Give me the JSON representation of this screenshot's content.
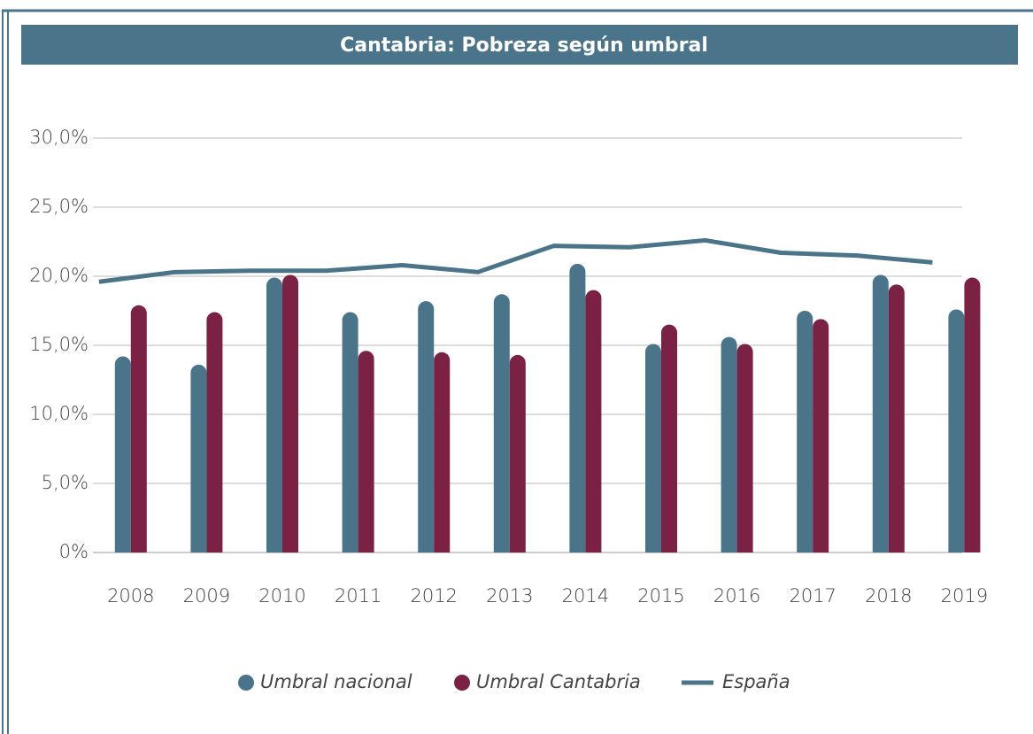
{
  "chart_data": {
    "type": "bar",
    "title": "Cantabria: Pobreza según umbral",
    "categories": [
      "2008",
      "2009",
      "2010",
      "2011",
      "2012",
      "2013",
      "2014",
      "2015",
      "2016",
      "2017",
      "2018",
      "2019"
    ],
    "series": [
      {
        "name": "Umbral nacional",
        "color": "#4a7489",
        "type": "bar",
        "values": [
          14.2,
          13.6,
          19.9,
          17.4,
          18.2,
          18.7,
          20.9,
          15.1,
          15.6,
          17.5,
          20.1,
          17.6
        ]
      },
      {
        "name": "Umbral Cantabria",
        "color": "#7a2144",
        "type": "bar",
        "values": [
          17.9,
          17.4,
          20.1,
          14.6,
          14.5,
          14.3,
          19.0,
          16.5,
          15.1,
          16.9,
          19.4,
          19.9
        ]
      },
      {
        "name": "España",
        "color": "#4a7489",
        "type": "line",
        "values": [
          19.6,
          20.3,
          20.4,
          20.4,
          20.8,
          20.3,
          22.2,
          22.1,
          22.6,
          21.7,
          21.5,
          21.0
        ]
      }
    ],
    "ylim": [
      0,
      30
    ],
    "yticks": [
      {
        "value": 0,
        "label": "0%"
      },
      {
        "value": 5,
        "label": "5,0%"
      },
      {
        "value": 10,
        "label": "10,0%"
      },
      {
        "value": 15,
        "label": "15,0%"
      },
      {
        "value": 20,
        "label": "20,0%"
      },
      {
        "value": 25,
        "label": "25,0%"
      },
      {
        "value": 30,
        "label": "30,0%"
      }
    ],
    "grid": true,
    "legend": "bottom"
  }
}
